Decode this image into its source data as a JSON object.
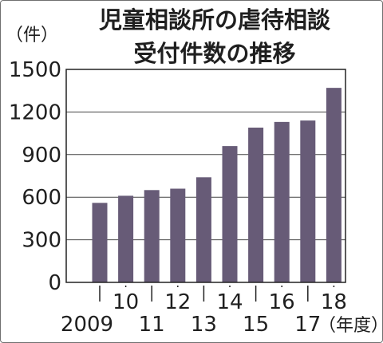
{
  "chart_data": {
    "type": "bar",
    "title": [
      "児童相談所の虐待相談",
      "受付件数の推移"
    ],
    "ylabel": "（件）",
    "xlabel": "（年度）",
    "categories": [
      "2009",
      "10",
      "11",
      "12",
      "13",
      "14",
      "15",
      "16",
      "17",
      "18"
    ],
    "values": [
      560,
      610,
      650,
      660,
      740,
      960,
      1090,
      1130,
      1140,
      1370
    ],
    "ylim": [
      0,
      1500
    ],
    "yticks": [
      0,
      300,
      600,
      900,
      1200,
      1500
    ],
    "ytick_labels": [
      "0",
      "300",
      "600",
      "900",
      "1200",
      "1500"
    ],
    "grid": true,
    "bar_color": "#675b77"
  }
}
